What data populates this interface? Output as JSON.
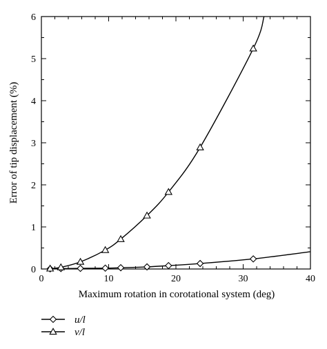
{
  "chart_data": {
    "type": "line",
    "xlabel": "Maximum rotation in corotational system (deg)",
    "ylabel": "Error of tip displacement (%)",
    "xlim": [
      0,
      40
    ],
    "ylim": [
      0,
      6
    ],
    "xticks": [
      "0",
      "10",
      "20",
      "30",
      "40"
    ],
    "yticks": [
      "0",
      "1",
      "2",
      "3",
      "4",
      "5",
      "6"
    ],
    "grid": false,
    "legend_position": "bottom-left",
    "series": [
      {
        "name": "u/l",
        "marker": "diamond",
        "points": [
          [
            1.3,
            0.005
          ],
          [
            2.9,
            0.01
          ],
          [
            5.8,
            0.015
          ],
          [
            9.5,
            0.02
          ],
          [
            11.8,
            0.03
          ],
          [
            15.7,
            0.05
          ],
          [
            18.9,
            0.08
          ],
          [
            23.6,
            0.13
          ],
          [
            31.5,
            0.24
          ]
        ],
        "curve_end": [
          40,
          0.41
        ]
      },
      {
        "name": "v/l",
        "marker": "triangle",
        "points": [
          [
            1.3,
            0.01
          ],
          [
            2.9,
            0.04
          ],
          [
            5.8,
            0.17
          ],
          [
            9.5,
            0.45
          ],
          [
            11.8,
            0.71
          ],
          [
            15.7,
            1.27
          ],
          [
            18.9,
            1.83
          ],
          [
            23.6,
            2.89
          ],
          [
            31.5,
            5.24
          ]
        ],
        "curve_end": [
          33.1,
          6
        ]
      }
    ]
  }
}
